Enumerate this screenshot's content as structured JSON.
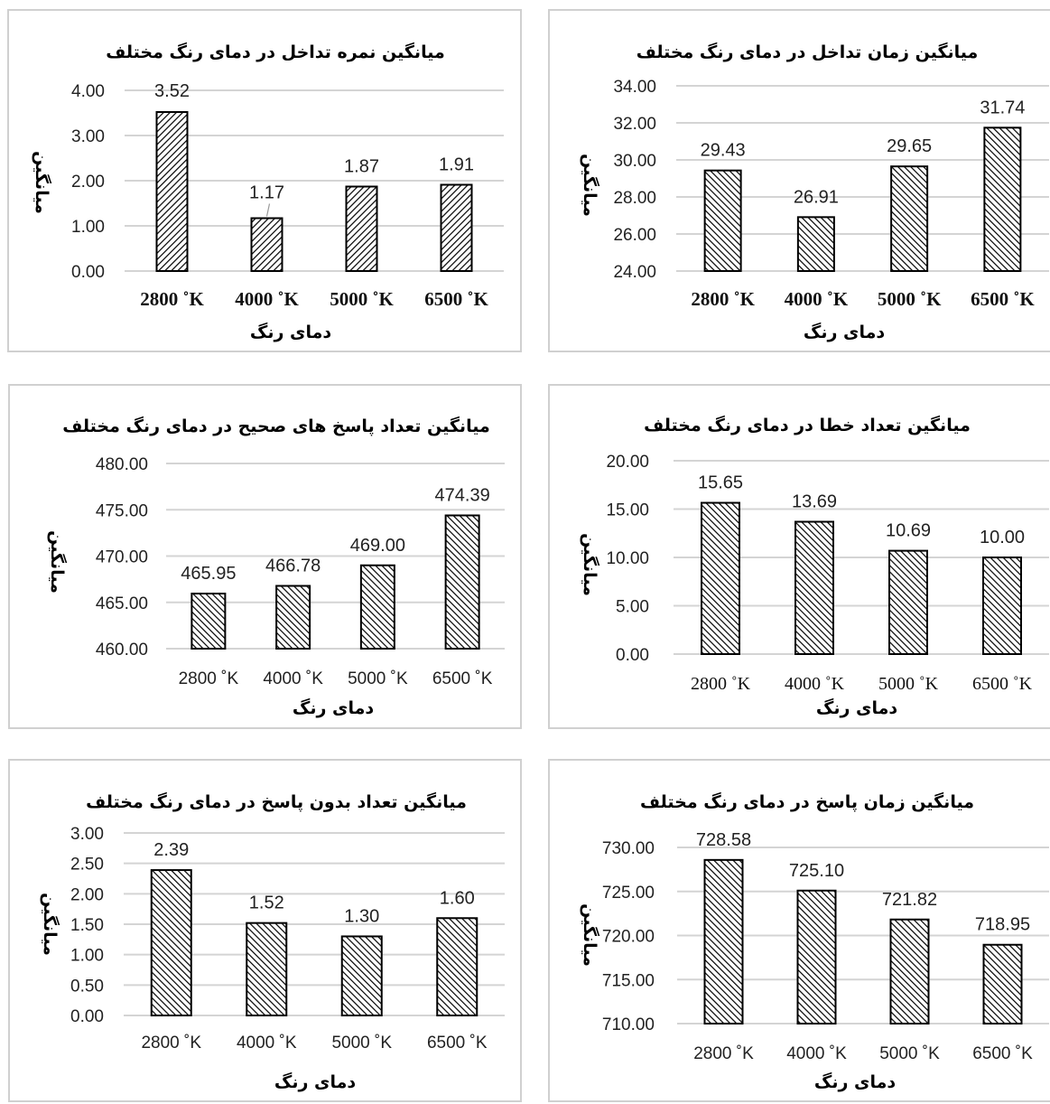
{
  "chart_data": [
    {
      "type": "bar",
      "title": "میانگین نمره تداخل در دمای رنگ مختلف",
      "xlabel": "دمای رنگ",
      "ylabel": "میانگین",
      "categories": [
        "2800 ˚K",
        "4000 ˚K",
        "5000 ˚K",
        "6500 ˚K"
      ],
      "values": [
        3.52,
        1.17,
        1.87,
        1.91
      ],
      "data_labels": [
        "3.52",
        "1.17",
        "1.87",
        "1.91"
      ],
      "yticks": [
        "0.00",
        "1.00",
        "2.00",
        "3.00",
        "4.00"
      ],
      "ylim": [
        0,
        4
      ],
      "pattern": "diagonal-back"
    },
    {
      "type": "bar",
      "title": "میانگین زمان تداخل در دمای رنگ مختلف",
      "xlabel": "دمای رنگ",
      "ylabel": "میانگین",
      "categories": [
        "2800 ˚K",
        "4000 ˚K",
        "5000 ˚K",
        "6500 ˚K"
      ],
      "values": [
        29.43,
        26.91,
        29.65,
        31.74
      ],
      "data_labels": [
        "29.43",
        "26.91",
        "29.65",
        "31.74"
      ],
      "yticks": [
        "24.00",
        "26.00",
        "28.00",
        "30.00",
        "32.00",
        "34.00"
      ],
      "ylim": [
        24,
        34
      ],
      "pattern": "diagonal"
    },
    {
      "type": "bar",
      "title": "میانگین تعداد پاسخ های صحیح در دمای رنگ مختلف",
      "xlabel": "دمای رنگ",
      "ylabel": "میانگین",
      "categories": [
        "2800 ˚K",
        "4000 ˚K",
        "5000 ˚K",
        "6500 ˚K"
      ],
      "values": [
        465.95,
        466.78,
        469.0,
        474.39
      ],
      "data_labels": [
        "465.95",
        "466.78",
        "469.00",
        "474.39"
      ],
      "yticks": [
        "460.00",
        "465.00",
        "470.00",
        "475.00",
        "480.00"
      ],
      "ylim": [
        460,
        480
      ],
      "pattern": "diagonal"
    },
    {
      "type": "bar",
      "title": "میانگین تعداد خطا در دمای رنگ مختلف",
      "xlabel": "دمای رنگ",
      "ylabel": "میانگین",
      "categories": [
        "2800 ˚K",
        "4000 ˚K",
        "5000 ˚K",
        "6500 ˚K"
      ],
      "values": [
        15.65,
        13.69,
        10.69,
        10.0
      ],
      "data_labels": [
        "15.65",
        "13.69",
        "10.69",
        "10.00"
      ],
      "yticks": [
        "0.00",
        "5.00",
        "10.00",
        "15.00",
        "20.00"
      ],
      "ylim": [
        0,
        20
      ],
      "pattern": "diagonal"
    },
    {
      "type": "bar",
      "title": "میانگین تعداد بدون پاسخ در دمای رنگ مختلف",
      "xlabel": "دمای رنگ",
      "ylabel": "میانگین",
      "categories": [
        "2800 ˚K",
        "4000 ˚K",
        "5000 ˚K",
        "6500 ˚K"
      ],
      "values": [
        2.39,
        1.52,
        1.3,
        1.6
      ],
      "data_labels": [
        "2.39",
        "1.52",
        "1.30",
        "1.60"
      ],
      "yticks": [
        "0.00",
        "0.50",
        "1.00",
        "1.50",
        "2.00",
        "2.50",
        "3.00"
      ],
      "ylim": [
        0,
        3
      ],
      "pattern": "diagonal"
    },
    {
      "type": "bar",
      "title": "میانگین زمان پاسخ در دمای رنگ مختلف",
      "xlabel": "دمای رنگ",
      "ylabel": "میانگین",
      "categories": [
        "2800 ˚K",
        "4000 ˚K",
        "5000 ˚K",
        "6500 ˚K"
      ],
      "values": [
        728.58,
        725.1,
        721.82,
        718.95
      ],
      "data_labels": [
        "728.58",
        "725.10",
        "721.82",
        "718.95"
      ],
      "yticks": [
        "710.00",
        "715.00",
        "720.00",
        "725.00",
        "730.00"
      ],
      "ylim": [
        710,
        730
      ],
      "pattern": "diagonal"
    }
  ]
}
